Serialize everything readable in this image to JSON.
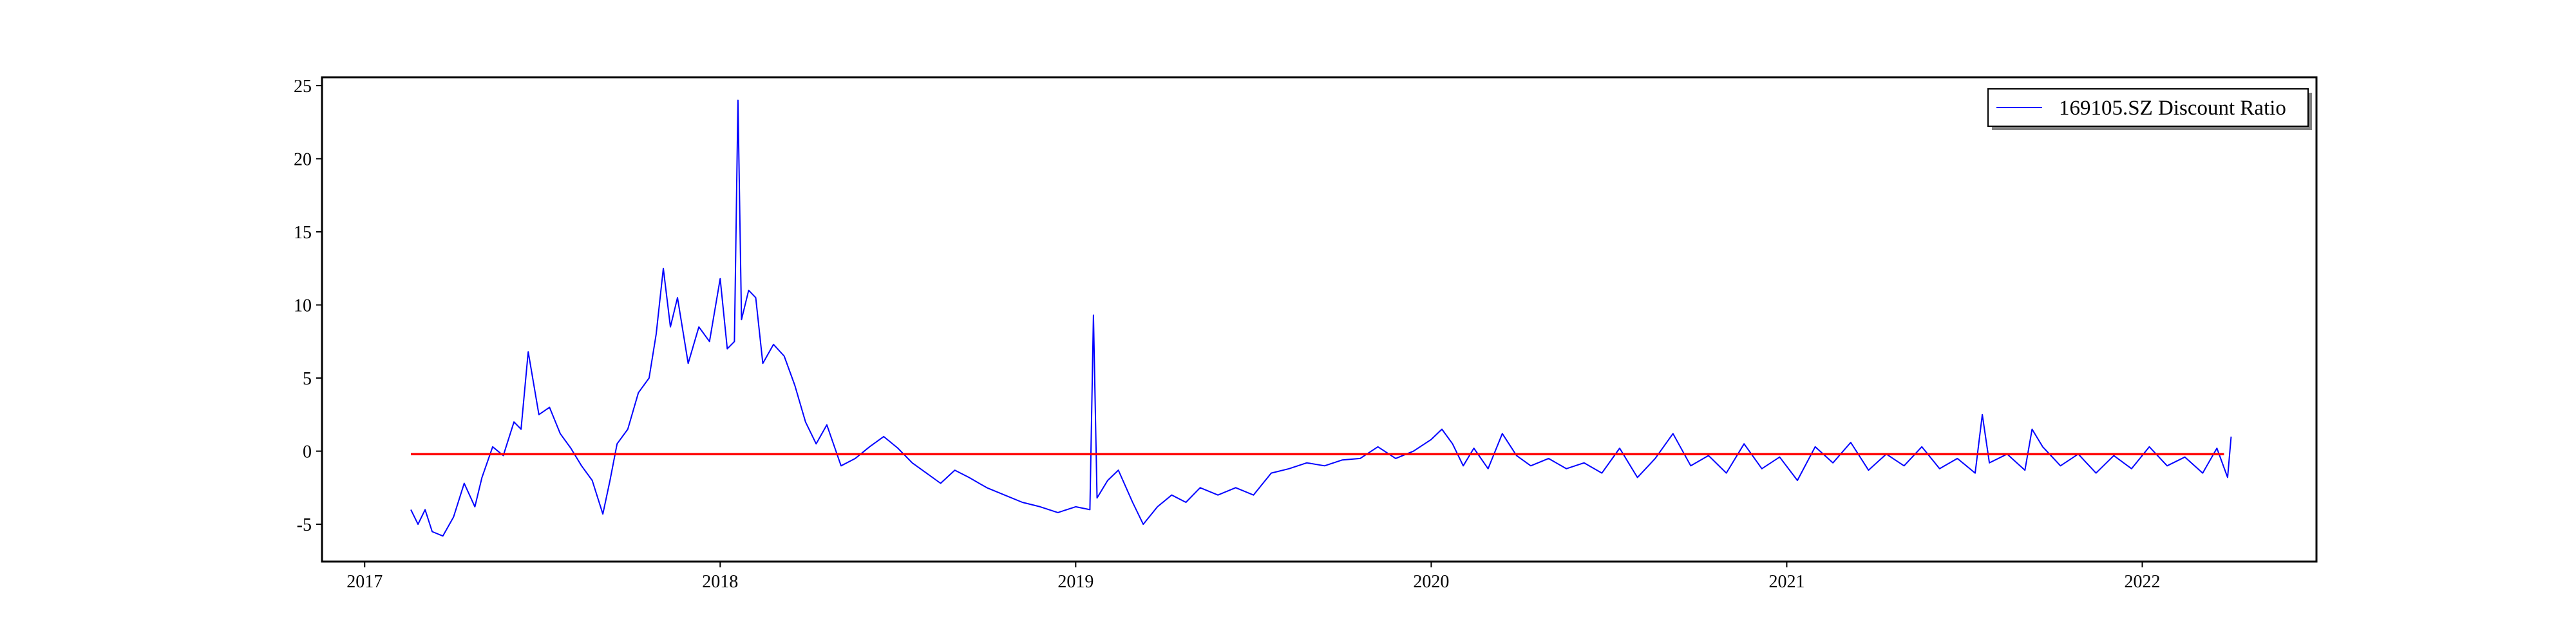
{
  "chart_data": {
    "type": "line",
    "x": [
      2017.13,
      2017.15,
      2017.17,
      2017.19,
      2017.22,
      2017.25,
      2017.28,
      2017.31,
      2017.33,
      2017.36,
      2017.39,
      2017.42,
      2017.44,
      2017.46,
      2017.49,
      2017.52,
      2017.55,
      2017.58,
      2017.61,
      2017.64,
      2017.67,
      2017.69,
      2017.71,
      2017.74,
      2017.77,
      2017.8,
      2017.82,
      2017.84,
      2017.86,
      2017.88,
      2017.91,
      2017.94,
      2017.97,
      2018.0,
      2018.02,
      2018.04,
      2018.05,
      2018.06,
      2018.08,
      2018.1,
      2018.12,
      2018.15,
      2018.18,
      2018.21,
      2018.24,
      2018.27,
      2018.3,
      2018.34,
      2018.38,
      2018.42,
      2018.46,
      2018.5,
      2018.54,
      2018.58,
      2018.62,
      2018.66,
      2018.7,
      2018.75,
      2018.8,
      2018.85,
      2018.9,
      2018.95,
      2019.0,
      2019.04,
      2019.05,
      2019.06,
      2019.09,
      2019.12,
      2019.16,
      2019.19,
      2019.23,
      2019.27,
      2019.31,
      2019.35,
      2019.4,
      2019.45,
      2019.5,
      2019.55,
      2019.6,
      2019.65,
      2019.7,
      2019.75,
      2019.8,
      2019.85,
      2019.9,
      2019.95,
      2020.0,
      2020.03,
      2020.06,
      2020.09,
      2020.12,
      2020.16,
      2020.2,
      2020.24,
      2020.28,
      2020.33,
      2020.38,
      2020.43,
      2020.48,
      2020.53,
      2020.58,
      2020.63,
      2020.68,
      2020.73,
      2020.78,
      2020.83,
      2020.88,
      2020.93,
      2020.98,
      2021.03,
      2021.08,
      2021.13,
      2021.18,
      2021.23,
      2021.28,
      2021.33,
      2021.38,
      2021.43,
      2021.48,
      2021.53,
      2021.55,
      2021.57,
      2021.62,
      2021.67,
      2021.69,
      2021.72,
      2021.77,
      2021.82,
      2021.87,
      2021.92,
      2021.97,
      2022.02,
      2022.07,
      2022.12,
      2022.17,
      2022.21,
      2022.24,
      2022.25
    ],
    "series": [
      {
        "name": "169105.SZ Discount Ratio",
        "color": "#0000ff",
        "values": [
          -4,
          -5,
          -4,
          -5.5,
          -5.8,
          -4.5,
          -2.2,
          -3.8,
          -1.8,
          0.3,
          -0.3,
          2,
          1.5,
          6.8,
          2.5,
          3,
          1.2,
          0.2,
          -1,
          -2,
          -4.3,
          -2,
          0.5,
          1.5,
          4,
          5,
          8,
          12.5,
          8.5,
          10.5,
          6,
          8.5,
          7.5,
          11.8,
          7,
          7.5,
          24,
          9,
          11,
          10.5,
          6,
          7.3,
          6.5,
          4.5,
          2,
          0.5,
          1.8,
          -1,
          -0.5,
          0.3,
          1,
          0.2,
          -0.8,
          -1.5,
          -2.2,
          -1.3,
          -1.8,
          -2.5,
          -3,
          -3.5,
          -3.8,
          -4.2,
          -3.8,
          -4,
          9.3,
          -3.2,
          -2,
          -1.3,
          -3.5,
          -5,
          -3.8,
          -3,
          -3.5,
          -2.5,
          -3,
          -2.5,
          -3,
          -1.5,
          -1.2,
          -0.8,
          -1,
          -0.6,
          -0.5,
          0.3,
          -0.5,
          0,
          0.8,
          1.5,
          0.5,
          -1,
          0.2,
          -1.2,
          1.2,
          -0.3,
          -1,
          -0.5,
          -1.2,
          -0.8,
          -1.5,
          0.2,
          -1.8,
          -0.5,
          1.2,
          -1,
          -0.3,
          -1.5,
          0.5,
          -1.2,
          -0.4,
          -2,
          0.3,
          -0.8,
          0.6,
          -1.3,
          -0.2,
          -1,
          0.3,
          -1.2,
          -0.5,
          -1.5,
          2.5,
          -0.8,
          -0.2,
          -1.3,
          1.5,
          0.3,
          -1,
          -0.2,
          -1.5,
          -0.3,
          -1.2,
          0.3,
          -1,
          -0.4,
          -1.5,
          0.2,
          -1.8,
          1
        ]
      }
    ],
    "hline": {
      "y": -0.2,
      "x": [
        2017.13,
        2022.23
      ],
      "color": "#ff0000"
    },
    "xlim": [
      2016.88,
      2022.49
    ],
    "xticks": [
      2017,
      2018,
      2019,
      2020,
      2021,
      2022
    ],
    "ylim": [
      -7.55,
      25.57
    ],
    "yticks": [
      -5,
      0,
      5,
      10,
      15,
      20,
      25
    ],
    "legend": "upper right"
  }
}
